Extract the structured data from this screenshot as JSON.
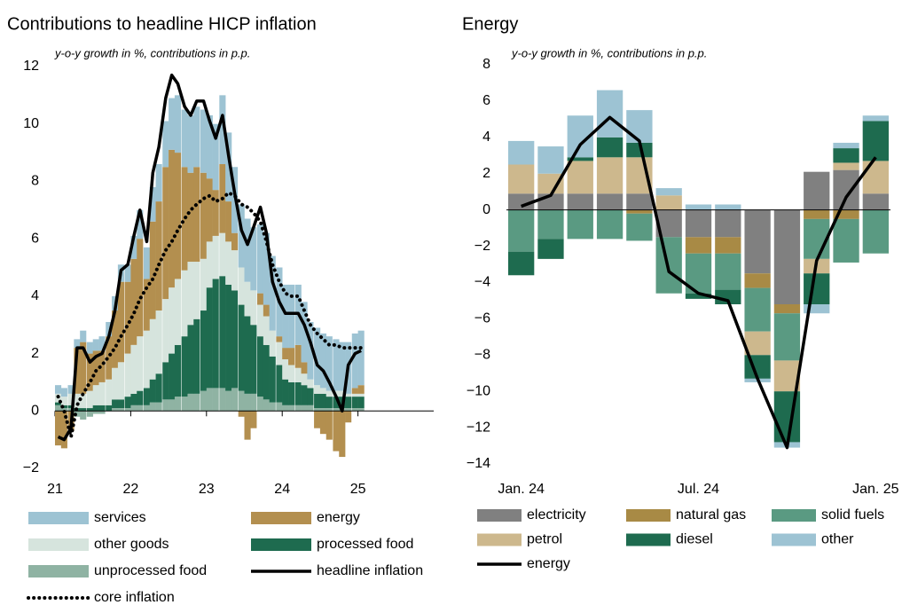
{
  "chart_data": [
    {
      "type": "bar",
      "title": "Contributions to headline HICP inflation",
      "subtitle": "y-o-y growth in %, contributions in p.p.",
      "x": [
        21,
        21.08,
        21.17,
        21.25,
        21.33,
        21.42,
        21.5,
        21.58,
        21.67,
        21.75,
        21.83,
        21.92,
        22,
        22.08,
        22.17,
        22.25,
        22.33,
        22.42,
        22.5,
        22.58,
        22.67,
        22.75,
        22.83,
        22.92,
        23,
        23.08,
        23.17,
        23.25,
        23.33,
        23.42,
        23.5,
        23.58,
        23.67,
        23.75,
        23.83,
        23.92,
        24,
        24.08,
        24.17,
        24.25,
        24.33,
        24.42,
        24.5,
        24.58,
        24.67,
        24.75,
        24.83,
        24.92,
        25
      ],
      "xlim": [
        21,
        26
      ],
      "xticks": [
        21,
        22,
        23,
        24,
        25
      ],
      "ylim": [
        -2,
        12
      ],
      "yticks": [
        {
          "value": -2,
          "label": "−2"
        },
        0,
        2,
        4,
        6,
        8,
        10,
        12
      ],
      "grid": false,
      "legend": "bottom",
      "series": [
        {
          "name": "services",
          "color": "#9dc3d3",
          "values": [
            0.3,
            0.3,
            0.3,
            0.3,
            0.4,
            0.4,
            0.4,
            0.5,
            0.5,
            0.5,
            0.6,
            0.6,
            0.8,
            1.0,
            1.1,
            1.2,
            1.3,
            1.6,
            1.8,
            2.0,
            2.0,
            2.0,
            2.1,
            2.2,
            2.2,
            2.3,
            2.4,
            2.4,
            2.3,
            2.2,
            2.2,
            2.2,
            2.4,
            2.5,
            2.6,
            2.4,
            2.2,
            2.2,
            2.1,
            2.1,
            2.0,
            2.0,
            1.9,
            1.9,
            1.8,
            1.7,
            1.8,
            1.9,
            1.9
          ]
        },
        {
          "name": "energy",
          "color": "#b38f4f",
          "values": [
            -1.2,
            -1.3,
            -0.7,
            1.6,
            1.8,
            1.3,
            1.2,
            1.1,
            1.5,
            2.0,
            2.8,
            2.5,
            3.0,
            3.4,
            1.8,
            3.4,
            3.8,
            4.6,
            4.8,
            4.4,
            3.6,
            3.1,
            3.3,
            3.0,
            2.2,
            1.6,
            2.4,
            1.4,
            0.6,
            -0.2,
            -1.0,
            -0.6,
            0.4,
            0.4,
            0.0,
            0.2,
            0.4,
            0.6,
            0.8,
            0.4,
            0.0,
            -0.6,
            -0.8,
            -1.0,
            -1.4,
            -1.6,
            -0.4,
            0.2,
            0.3
          ]
        },
        {
          "name": "other goods",
          "color": "#d6e4dd",
          "values": [
            0.3,
            0.3,
            0.4,
            0.5,
            0.5,
            0.6,
            0.7,
            0.8,
            0.9,
            1.1,
            1.3,
            1.5,
            1.7,
            1.9,
            2.0,
            2.1,
            2.2,
            2.2,
            2.3,
            2.3,
            2.3,
            2.2,
            2.0,
            1.8,
            1.6,
            1.5,
            1.5,
            1.5,
            1.4,
            1.3,
            1.2,
            1.2,
            1.1,
            1.0,
            0.9,
            0.8,
            0.7,
            0.6,
            0.5,
            0.4,
            0.3,
            0.3,
            0.2,
            0.2,
            0.2,
            0.2,
            0.1,
            0.1,
            0.1
          ]
        },
        {
          "name": "processed food",
          "color": "#1e6b4f",
          "values": [
            0.1,
            0.1,
            0.1,
            0.1,
            0.1,
            0.1,
            0.2,
            0.2,
            0.2,
            0.3,
            0.3,
            0.4,
            0.4,
            0.5,
            0.6,
            0.8,
            1.0,
            1.3,
            1.6,
            1.8,
            2.1,
            2.4,
            2.6,
            2.8,
            3.5,
            3.8,
            3.9,
            3.7,
            3.4,
            3.0,
            2.7,
            2.4,
            2.1,
            1.9,
            1.6,
            1.3,
            0.9,
            0.8,
            0.8,
            0.7,
            0.6,
            0.5,
            0.5,
            0.4,
            0.4,
            0.4,
            0.4,
            0.4,
            0.4
          ]
        },
        {
          "name": "unprocessed food",
          "color": "#8fb3a3",
          "values": [
            0.2,
            0.1,
            0.1,
            -0.2,
            -0.3,
            -0.2,
            -0.1,
            -0.1,
            0.0,
            0.1,
            0.1,
            0.1,
            0.2,
            0.2,
            0.2,
            0.3,
            0.3,
            0.4,
            0.4,
            0.5,
            0.5,
            0.6,
            0.6,
            0.7,
            0.8,
            0.8,
            0.8,
            0.7,
            0.8,
            0.7,
            0.6,
            0.6,
            0.5,
            0.4,
            0.3,
            0.3,
            0.2,
            0.2,
            0.2,
            0.2,
            0.2,
            0.1,
            0.1,
            0.1,
            0.1,
            0.1,
            0.1,
            0.1,
            0.1
          ]
        },
        {
          "name": "headline inflation",
          "type": "line",
          "color": "#000000",
          "values": [
            -0.9,
            -1.0,
            -0.6,
            2.2,
            2.2,
            1.7,
            1.9,
            2.0,
            2.6,
            3.5,
            4.9,
            5.1,
            6.1,
            7.0,
            5.9,
            8.3,
            9.2,
            10.9,
            11.7,
            11.4,
            10.6,
            10.3,
            10.8,
            10.8,
            10.1,
            9.5,
            10.3,
            8.9,
            7.6,
            6.3,
            5.8,
            6.4,
            7.1,
            6.2,
            4.5,
            3.8,
            3.4,
            3.4,
            3.4,
            3.0,
            2.4,
            1.6,
            1.4,
            1.0,
            0.5,
            0.0,
            1.6,
            2.0,
            2.1
          ]
        },
        {
          "name": "core inflation",
          "type": "line",
          "dash": "dotted",
          "color": "#000000",
          "values": [
            0.5,
            0.0,
            -0.9,
            0.2,
            0.6,
            1.0,
            1.4,
            1.6,
            1.9,
            2.2,
            2.6,
            3.0,
            3.4,
            3.9,
            4.3,
            4.6,
            5.1,
            5.6,
            5.9,
            6.3,
            6.7,
            7.0,
            7.2,
            7.4,
            7.5,
            7.3,
            7.4,
            7.6,
            7.5,
            7.2,
            7.1,
            6.9,
            6.6,
            5.9,
            5.1,
            4.5,
            4.1,
            4.0,
            4.0,
            3.5,
            3.0,
            2.7,
            2.5,
            2.3,
            2.3,
            2.2,
            2.2,
            2.2,
            2.2
          ]
        }
      ]
    },
    {
      "type": "bar",
      "title": "Energy",
      "subtitle": "y-o-y growth in %, contributions in p.p.",
      "categories": [
        "Jan. 24",
        null,
        null,
        null,
        null,
        null,
        "Jul. 24",
        null,
        null,
        null,
        null,
        null,
        "Jan. 25"
      ],
      "ylim": [
        -14,
        8
      ],
      "yticks": [
        {
          "value": -14,
          "label": "−14"
        },
        {
          "value": -12,
          "label": "−12"
        },
        {
          "value": -10,
          "label": "−10"
        },
        {
          "value": -8,
          "label": "−8"
        },
        {
          "value": -6,
          "label": "−6"
        },
        {
          "value": -4,
          "label": "−4"
        },
        {
          "value": -2,
          "label": "−2"
        },
        0,
        2,
        4,
        6,
        8
      ],
      "grid": false,
      "legend": "bottom",
      "series": [
        {
          "name": "electricity",
          "color": "#808080",
          "values": [
            0.9,
            0.9,
            0.9,
            0.9,
            0.9,
            -1.5,
            -1.5,
            -1.5,
            -3.5,
            -5.2,
            2.1,
            2.2,
            0.9
          ]
        },
        {
          "name": "natural gas",
          "color": "#a88a45",
          "values": [
            0,
            0,
            0,
            0,
            -0.2,
            0,
            -0.9,
            -0.9,
            -0.8,
            -0.5,
            -0.5,
            -0.5,
            0
          ]
        },
        {
          "name": "solid fuels",
          "color": "#5a9a82",
          "values": [
            -2.3,
            -1.6,
            -1.6,
            -1.6,
            -1.5,
            -3.1,
            -2.2,
            -2.0,
            -2.4,
            -2.6,
            -2.2,
            -2.4,
            -2.4
          ]
        },
        {
          "name": "petrol",
          "color": "#cdb88d",
          "values": [
            1.6,
            1.1,
            1.8,
            2.0,
            2.0,
            0.8,
            0,
            0,
            -1.3,
            -1.7,
            -0.8,
            0.4,
            1.8
          ]
        },
        {
          "name": "diesel",
          "color": "#1e6b4f",
          "values": [
            -1.3,
            -1.1,
            0.2,
            1.1,
            0.8,
            0,
            -0.3,
            -0.8,
            -1.3,
            -2.8,
            -1.7,
            0.8,
            2.2
          ]
        },
        {
          "name": "other",
          "color": "#9dc3d3",
          "values": [
            1.3,
            1.5,
            2.3,
            2.6,
            1.8,
            0.4,
            0.3,
            0.3,
            -0.2,
            -0.3,
            -0.5,
            0.3,
            0.3
          ]
        },
        {
          "name": "energy",
          "type": "line",
          "color": "#000000",
          "values": [
            0.2,
            0.8,
            3.6,
            5.1,
            3.8,
            -3.4,
            -4.6,
            -5.0,
            -9.3,
            -13.1,
            -2.8,
            0.7,
            2.9
          ]
        }
      ]
    }
  ]
}
